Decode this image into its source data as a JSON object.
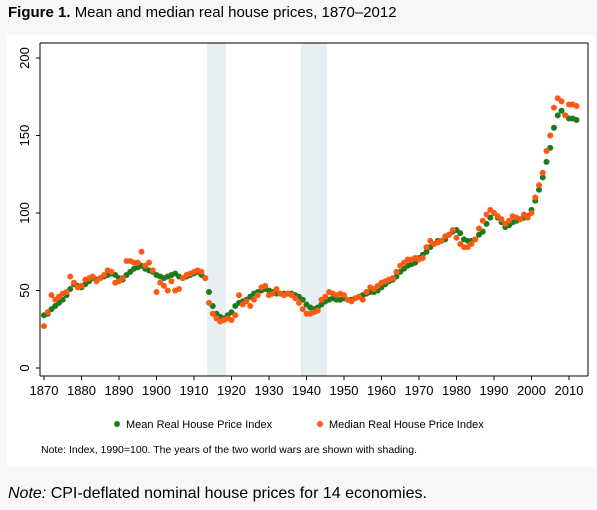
{
  "title": {
    "label": "Figure 1.",
    "text": "Mean and median real house prices, 1870–2012"
  },
  "footer": {
    "label": "Note:",
    "text": "CPI-deflated nominal house prices for 14 economies."
  },
  "colors": {
    "mean": "#1e7a1e",
    "median": "#ff5a14",
    "shading": "#e6eef2"
  },
  "chart_data": {
    "type": "scatter",
    "note": "Note: Index, 1990=100. The years of the two world wars are shown with shading.",
    "xlim": [
      1868,
      2014
    ],
    "ylim": [
      0,
      200
    ],
    "x_ticks": [
      1870,
      1880,
      1890,
      1900,
      1910,
      1920,
      1930,
      1940,
      1950,
      1960,
      1970,
      1980,
      1990,
      2000,
      2010
    ],
    "y_ticks": [
      0,
      50,
      100,
      150,
      200
    ],
    "shaded_periods": [
      [
        1914,
        1918
      ],
      [
        1939,
        1945
      ]
    ],
    "legend_position": "bottom",
    "series": [
      {
        "name": "Mean Real House Price Index",
        "x": [
          1870,
          1871,
          1872,
          1873,
          1874,
          1875,
          1876,
          1877,
          1878,
          1879,
          1880,
          1881,
          1882,
          1883,
          1884,
          1885,
          1886,
          1887,
          1888,
          1889,
          1890,
          1891,
          1892,
          1893,
          1894,
          1895,
          1896,
          1897,
          1898,
          1899,
          1900,
          1901,
          1902,
          1903,
          1904,
          1905,
          1906,
          1907,
          1908,
          1909,
          1910,
          1911,
          1912,
          1913,
          1914,
          1915,
          1916,
          1917,
          1918,
          1919,
          1920,
          1921,
          1922,
          1923,
          1924,
          1925,
          1926,
          1927,
          1928,
          1929,
          1930,
          1931,
          1932,
          1933,
          1934,
          1935,
          1936,
          1937,
          1938,
          1939,
          1940,
          1941,
          1942,
          1943,
          1944,
          1945,
          1946,
          1947,
          1948,
          1949,
          1950,
          1951,
          1952,
          1953,
          1954,
          1955,
          1956,
          1957,
          1958,
          1959,
          1960,
          1961,
          1962,
          1963,
          1964,
          1965,
          1966,
          1967,
          1968,
          1969,
          1970,
          1971,
          1972,
          1973,
          1974,
          1975,
          1976,
          1977,
          1978,
          1979,
          1980,
          1981,
          1982,
          1983,
          1984,
          1985,
          1986,
          1987,
          1988,
          1989,
          1990,
          1991,
          1992,
          1993,
          1994,
          1995,
          1996,
          1997,
          1998,
          1999,
          2000,
          2001,
          2002,
          2003,
          2004,
          2005,
          2006,
          2007,
          2008,
          2009,
          2010,
          2011,
          2012
        ],
        "values": [
          34,
          35,
          38,
          40,
          42,
          44,
          47,
          51,
          54,
          53,
          52,
          54,
          56,
          58,
          57,
          58,
          59,
          60,
          61,
          60,
          58,
          57,
          60,
          62,
          64,
          65,
          66,
          64,
          63,
          62,
          60,
          59,
          58,
          59,
          60,
          61,
          59,
          58,
          59,
          60,
          61,
          62,
          60,
          58,
          49,
          40,
          35,
          33,
          32,
          34,
          36,
          40,
          42,
          43,
          44,
          46,
          48,
          49,
          50,
          51,
          50,
          49,
          48,
          48,
          48,
          48,
          48,
          47,
          46,
          44,
          41,
          39,
          38,
          39,
          41,
          43,
          44,
          45,
          44,
          44,
          45,
          44,
          44,
          45,
          46,
          47,
          48,
          49,
          49,
          50,
          52,
          54,
          56,
          57,
          59,
          62,
          64,
          66,
          67,
          68,
          71,
          73,
          75,
          78,
          80,
          82,
          82,
          83,
          86,
          88,
          89,
          87,
          83,
          82,
          82,
          83,
          86,
          88,
          93,
          97,
          100,
          97,
          94,
          91,
          92,
          94,
          95,
          96,
          97,
          98,
          102,
          108,
          115,
          123,
          133,
          142,
          155,
          163,
          166,
          163,
          161,
          161,
          160
        ]
      },
      {
        "name": "Median Real House Price Index",
        "x": [
          1870,
          1871,
          1872,
          1873,
          1874,
          1875,
          1876,
          1877,
          1878,
          1879,
          1880,
          1881,
          1882,
          1883,
          1884,
          1885,
          1886,
          1887,
          1888,
          1889,
          1890,
          1891,
          1892,
          1893,
          1894,
          1895,
          1896,
          1897,
          1898,
          1899,
          1900,
          1901,
          1902,
          1903,
          1904,
          1905,
          1906,
          1907,
          1908,
          1909,
          1910,
          1911,
          1912,
          1913,
          1914,
          1915,
          1916,
          1917,
          1918,
          1919,
          1920,
          1921,
          1922,
          1923,
          1924,
          1925,
          1926,
          1927,
          1928,
          1929,
          1930,
          1931,
          1932,
          1933,
          1934,
          1935,
          1936,
          1937,
          1938,
          1939,
          1940,
          1941,
          1942,
          1943,
          1944,
          1945,
          1946,
          1947,
          1948,
          1949,
          1950,
          1951,
          1952,
          1953,
          1954,
          1955,
          1956,
          1957,
          1958,
          1959,
          1960,
          1961,
          1962,
          1963,
          1964,
          1965,
          1966,
          1967,
          1968,
          1969,
          1970,
          1971,
          1972,
          1973,
          1974,
          1975,
          1976,
          1977,
          1978,
          1979,
          1980,
          1981,
          1982,
          1983,
          1984,
          1985,
          1986,
          1987,
          1988,
          1989,
          1990,
          1991,
          1992,
          1993,
          1994,
          1995,
          1996,
          1997,
          1998,
          1999,
          2000,
          2001,
          2002,
          2003,
          2004,
          2005,
          2006,
          2007,
          2008,
          2009,
          2010,
          2011,
          2012
        ],
        "values": [
          27,
          36,
          47,
          44,
          46,
          48,
          49,
          59,
          55,
          52,
          53,
          57,
          58,
          59,
          56,
          58,
          60,
          63,
          62,
          55,
          56,
          58,
          69,
          69,
          68,
          68,
          75,
          66,
          68,
          63,
          49,
          55,
          53,
          50,
          56,
          50,
          51,
          58,
          60,
          61,
          62,
          63,
          62,
          58,
          42,
          35,
          32,
          30,
          31,
          32,
          31,
          34,
          47,
          41,
          43,
          40,
          44,
          47,
          52,
          53,
          47,
          48,
          51,
          48,
          47,
          48,
          47,
          45,
          42,
          38,
          35,
          35,
          36,
          37,
          44,
          46,
          49,
          48,
          47,
          48,
          47,
          44,
          43,
          45,
          46,
          44,
          49,
          52,
          51,
          53,
          55,
          56,
          57,
          58,
          62,
          66,
          68,
          70,
          70,
          71,
          70,
          71,
          78,
          82,
          80,
          81,
          82,
          85,
          86,
          89,
          84,
          80,
          78,
          78,
          80,
          83,
          90,
          95,
          99,
          102,
          100,
          98,
          96,
          93,
          95,
          98,
          97,
          96,
          99,
          97,
          100,
          110,
          118,
          126,
          140,
          150,
          168,
          174,
          172,
          163,
          170,
          170,
          169
        ]
      }
    ]
  }
}
